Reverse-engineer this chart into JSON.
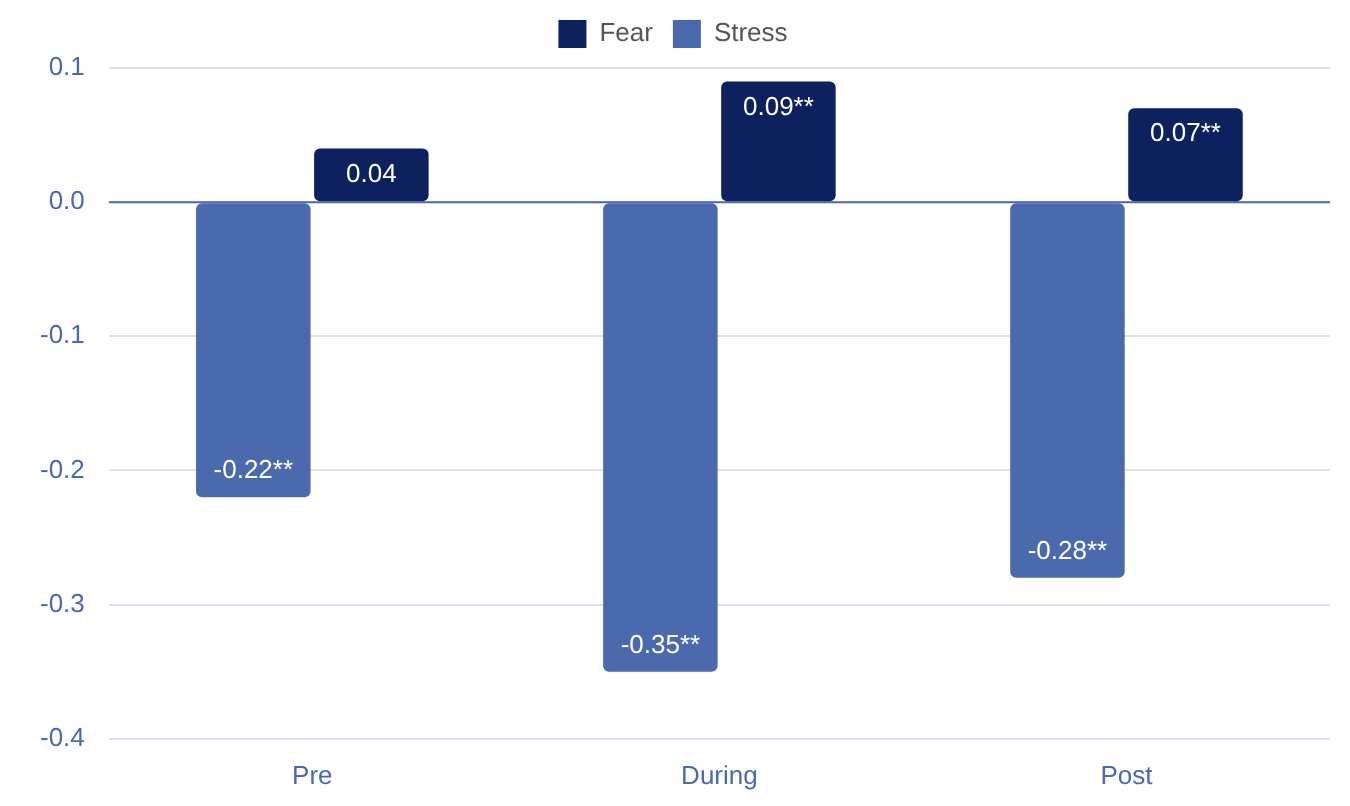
{
  "chart_data": {
    "type": "bar",
    "categories": [
      "Pre",
      "During",
      "Post"
    ],
    "series": [
      {
        "name": "Fear",
        "color": "#0c215e",
        "values": [
          0.04,
          0.09,
          0.07
        ],
        "value_labels": [
          "0.04",
          "0.09**",
          "0.07**"
        ]
      },
      {
        "name": "Stress",
        "color": "#4a6aad",
        "values": [
          -0.22,
          -0.35,
          -0.28
        ],
        "value_labels": [
          "-0.22**",
          "-0.35**",
          "-0.28**"
        ]
      }
    ],
    "ylim": [
      -0.4,
      0.1
    ],
    "yticks": [
      -0.4,
      -0.3,
      -0.2,
      -0.1,
      {
        "value": 0,
        "label": "0.0"
      },
      0.1
    ],
    "grid": "y",
    "legend": "top",
    "ref_lines": [
      {
        "axis": "y",
        "value": 0,
        "color": "#4a6aad"
      }
    ]
  }
}
